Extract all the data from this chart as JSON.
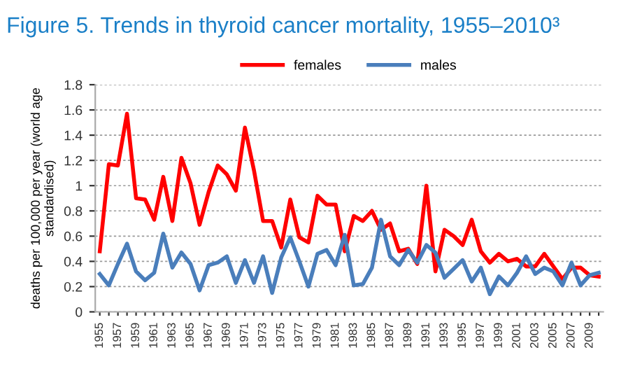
{
  "chart_data": {
    "type": "line",
    "title": "Figure 5. Trends in thyroid cancer mortality, 1955–2010³",
    "ylabel": "deaths per 100,000 per year (world age standardised)",
    "categories": [
      "1955",
      null,
      "1957",
      null,
      "1959",
      null,
      "1961",
      null,
      "1963",
      null,
      "1965",
      null,
      "1967",
      null,
      "1969",
      null,
      "1971",
      null,
      "1973",
      null,
      "1975",
      null,
      "1977",
      null,
      "1979",
      null,
      "1981",
      null,
      "1983",
      null,
      "1985",
      null,
      "1987",
      null,
      "1989",
      null,
      "1991",
      null,
      "1993",
      null,
      "1995",
      null,
      "1997",
      null,
      "1999",
      null,
      "2001",
      null,
      "2003",
      null,
      "2005",
      null,
      "2007",
      null,
      "2009",
      null
    ],
    "series": [
      {
        "name": "females",
        "color": "#ff0000",
        "values": [
          0.48,
          1.17,
          1.16,
          1.57,
          0.9,
          0.89,
          0.73,
          1.07,
          0.72,
          1.22,
          1.02,
          0.69,
          0.95,
          1.16,
          1.09,
          0.96,
          1.46,
          1.12,
          0.72,
          0.72,
          0.51,
          0.89,
          0.59,
          0.55,
          0.92,
          0.85,
          0.85,
          0.48,
          0.76,
          0.72,
          0.8,
          0.65,
          0.7,
          0.48,
          0.5,
          0.38,
          1.0,
          0.32,
          0.65,
          0.6,
          0.53,
          0.73,
          0.48,
          0.39,
          0.46,
          0.4,
          0.42,
          0.36,
          0.36,
          0.46,
          0.36,
          0.26,
          0.35,
          0.35,
          0.29,
          0.28
        ]
      },
      {
        "name": "males",
        "color": "#4a7ebb",
        "values": [
          0.3,
          0.21,
          0.38,
          0.54,
          0.32,
          0.25,
          0.31,
          0.62,
          0.35,
          0.47,
          0.38,
          0.17,
          0.37,
          0.39,
          0.44,
          0.23,
          0.41,
          0.23,
          0.44,
          0.15,
          0.43,
          0.59,
          0.4,
          0.2,
          0.46,
          0.49,
          0.37,
          0.61,
          0.21,
          0.22,
          0.35,
          0.73,
          0.44,
          0.37,
          0.49,
          0.39,
          0.53,
          0.47,
          0.27,
          0.34,
          0.41,
          0.24,
          0.35,
          0.14,
          0.28,
          0.21,
          0.31,
          0.44,
          0.3,
          0.35,
          0.32,
          0.21,
          0.39,
          0.21,
          0.29,
          0.31
        ]
      }
    ],
    "ylim": [
      0,
      1.8
    ],
    "yticks": [
      0,
      0.2,
      0.4,
      0.6,
      0.8,
      1,
      1.2,
      1.4,
      1.6,
      1.8
    ],
    "grid": "y",
    "legend": "top",
    "marker": "none",
    "line_style": "solid"
  }
}
